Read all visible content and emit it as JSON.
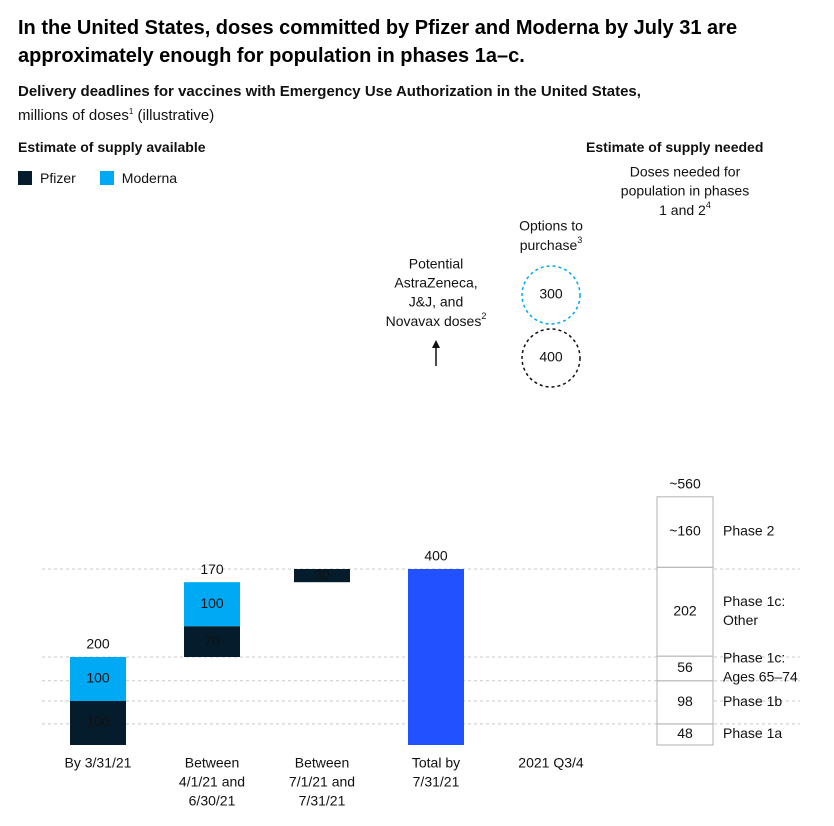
{
  "title": "In the United States, doses committed by Pfizer and Moderna by July 31 are approximately enough for population in phases 1a–c.",
  "subtitle_bold": "Delivery deadlines for vaccines with Emergency Use Authorization in the United States,",
  "subtitle_rest": "millions of doses",
  "subtitle_sup": "1",
  "subtitle_tail": " (illustrative)",
  "left_heading": "Estimate of supply available",
  "right_heading": "Estimate of supply needed",
  "colors": {
    "pfizer": "#051c2c",
    "moderna": "#00a9f4",
    "total": "#2251ff",
    "grid": "#c8c8c8",
    "needed_border": "#b0b0b0"
  },
  "chart_data": {
    "type": "bar",
    "stacking": "waterfall",
    "unit": "millions of doses",
    "ylim": [
      0,
      600
    ],
    "legend": [
      {
        "name": "Pfizer",
        "color": "#051c2c"
      },
      {
        "name": "Moderna",
        "color": "#00a9f4"
      }
    ],
    "supply_available": [
      {
        "category": "By 3/31/21",
        "label_lines": [
          "By 3/31/21"
        ],
        "base": 0,
        "total_label": "200",
        "segments": [
          {
            "series": "Pfizer",
            "value": 100
          },
          {
            "series": "Moderna",
            "value": 100
          }
        ]
      },
      {
        "category": "Between 4/1/21 and 6/30/21",
        "label_lines": [
          "Between",
          "4/1/21 and",
          "6/30/21"
        ],
        "base": 200,
        "total_label": "170",
        "segments": [
          {
            "series": "Pfizer",
            "value": 70
          },
          {
            "series": "Moderna",
            "value": 100
          }
        ]
      },
      {
        "category": "Between 7/1/21 and 7/31/21",
        "label_lines": [
          "Between",
          "7/1/21 and",
          "7/31/21"
        ],
        "base": 370,
        "total_label": "",
        "segments": [
          {
            "series": "Pfizer",
            "value": 30
          }
        ]
      },
      {
        "category": "Total by 7/31/21",
        "label_lines": [
          "Total by",
          "7/31/21"
        ],
        "base": 0,
        "total_label": "400",
        "segments": [
          {
            "series": "Total",
            "value": 400
          }
        ]
      }
    ],
    "potential_label_lines": [
      "Potential",
      "AstraZeneca,",
      "J&J, and",
      "Novavax doses"
    ],
    "potential_sup": "2",
    "options": {
      "category": "2021 Q3/4",
      "title_lines": [
        "Options to",
        "purchase"
      ],
      "title_sup": "3",
      "items": [
        {
          "value": 300,
          "style": "dashed-blue"
        },
        {
          "value": 400,
          "style": "dashed-black"
        }
      ]
    },
    "needed": {
      "title_lines": [
        "Doses needed for",
        "population in phases",
        "1 and 2"
      ],
      "title_sup": "4",
      "total_label": "~560",
      "segments": [
        {
          "phase_lines": [
            "Phase 1a"
          ],
          "value": 48,
          "value_label": "48"
        },
        {
          "phase_lines": [
            "Phase 1b"
          ],
          "value": 98,
          "value_label": "98"
        },
        {
          "phase_lines": [
            "Phase 1c:",
            "Ages 65–74"
          ],
          "value": 56,
          "value_label": "56"
        },
        {
          "phase_lines": [
            "Phase 1c:",
            "Other"
          ],
          "value": 202,
          "value_label": "202"
        },
        {
          "phase_lines": [
            "Phase 2"
          ],
          "value": 160,
          "value_label": "~160"
        }
      ]
    }
  }
}
